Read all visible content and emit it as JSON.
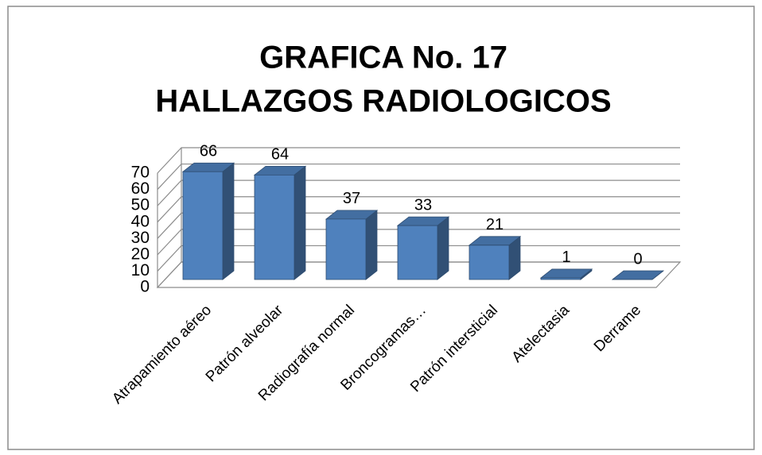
{
  "chart_data": {
    "type": "bar3d",
    "title": [
      "GRAFICA No. 17",
      "HALLAZGOS RADIOLOGICOS"
    ],
    "categories": [
      "Atrapamiento aéreo",
      "Patrón alveolar",
      "Radiografía normal",
      "Broncogramas…",
      "Patrón intersticial",
      "Atelectasia",
      "Derrame"
    ],
    "values": [
      66,
      64,
      37,
      33,
      21,
      1,
      0
    ],
    "color": "#4f81bd",
    "ylim": [
      0,
      70
    ],
    "yticks": [
      0,
      10,
      20,
      30,
      40,
      50,
      60,
      70
    ],
    "grid": true
  }
}
